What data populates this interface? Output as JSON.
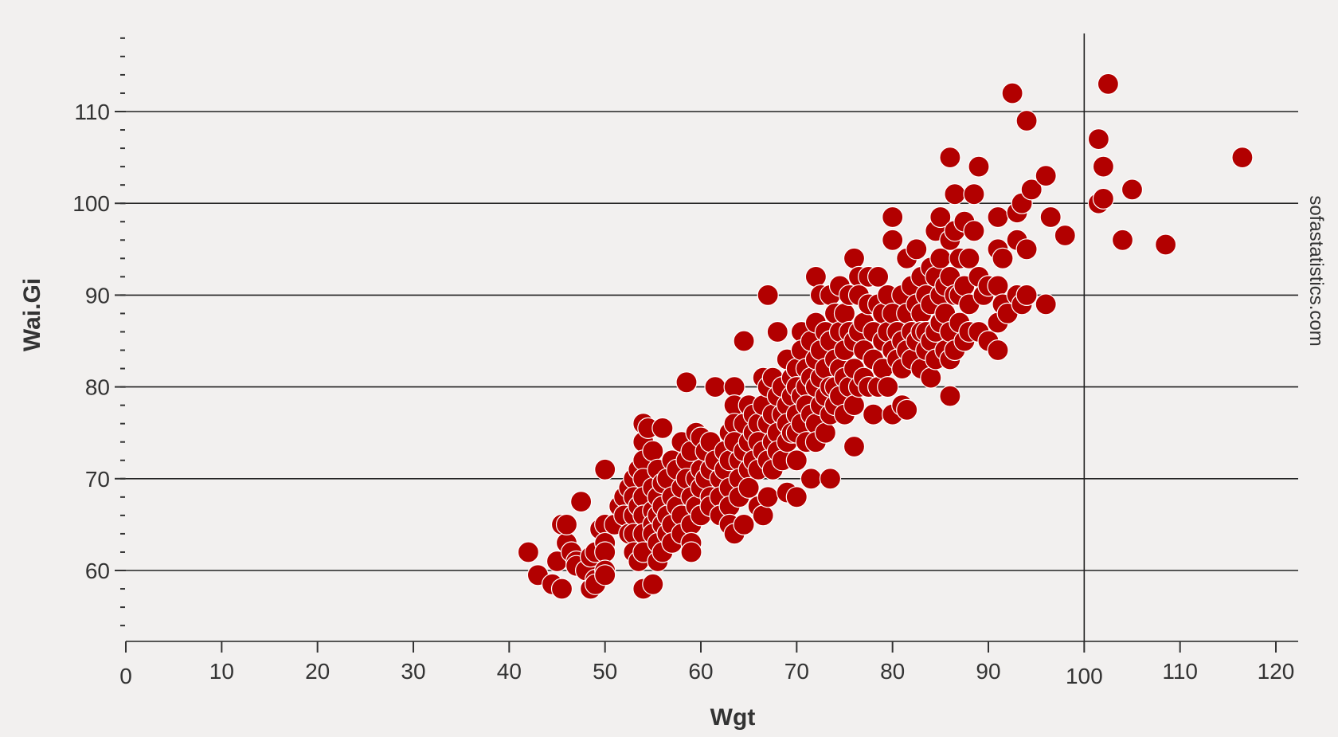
{
  "chart_data": {
    "type": "scatter",
    "xlabel": "Wgt",
    "ylabel": "Wai.Gi",
    "watermark": "sofastatistics.com",
    "xlim": [
      0,
      123
    ],
    "ylim": [
      52,
      118
    ],
    "x_ticks": [
      0,
      10,
      20,
      30,
      40,
      50,
      60,
      70,
      80,
      90,
      100,
      110,
      120
    ],
    "y_ticks": [
      60,
      70,
      80,
      90,
      100,
      110
    ],
    "y_minor_step": 2,
    "ref_line_x": 100,
    "grid_y": true,
    "marker_color": "#b20000",
    "marker_edge": "#ffffff",
    "points": [
      [
        42,
        62
      ],
      [
        43,
        59.5
      ],
      [
        44.5,
        58.5
      ],
      [
        45,
        61
      ],
      [
        45.5,
        58
      ],
      [
        45.5,
        65
      ],
      [
        46,
        63
      ],
      [
        46,
        65
      ],
      [
        46.5,
        62
      ],
      [
        47,
        61
      ],
      [
        47,
        60.5
      ],
      [
        47.5,
        67.5
      ],
      [
        48,
        60
      ],
      [
        48.5,
        58
      ],
      [
        48.5,
        61.5
      ],
      [
        49,
        59
      ],
      [
        49,
        58.5
      ],
      [
        49,
        62
      ],
      [
        49.5,
        64.5
      ],
      [
        50,
        71
      ],
      [
        50,
        65
      ],
      [
        50,
        63
      ],
      [
        50,
        62
      ],
      [
        50,
        60
      ],
      [
        50,
        59.5
      ],
      [
        51,
        65
      ],
      [
        51.5,
        67
      ],
      [
        52,
        68
      ],
      [
        52,
        66
      ],
      [
        52.5,
        69
      ],
      [
        52.5,
        64
      ],
      [
        53,
        70
      ],
      [
        53,
        68
      ],
      [
        53,
        66
      ],
      [
        53,
        64
      ],
      [
        53,
        62
      ],
      [
        53.5,
        71
      ],
      [
        53.5,
        67
      ],
      [
        53.5,
        61
      ],
      [
        54,
        76
      ],
      [
        54,
        74
      ],
      [
        54,
        72
      ],
      [
        54,
        70
      ],
      [
        54,
        68
      ],
      [
        54,
        66
      ],
      [
        54,
        64
      ],
      [
        54,
        62
      ],
      [
        54,
        58
      ],
      [
        54.5,
        75.5
      ],
      [
        55,
        73
      ],
      [
        55,
        69
      ],
      [
        55,
        66.5
      ],
      [
        55,
        65
      ],
      [
        55,
        64
      ],
      [
        55,
        58.5
      ],
      [
        55.5,
        71
      ],
      [
        55.5,
        68
      ],
      [
        55.5,
        66
      ],
      [
        55.5,
        63
      ],
      [
        55.5,
        61
      ],
      [
        56,
        75.5
      ],
      [
        56,
        69.5
      ],
      [
        56,
        67
      ],
      [
        56,
        65
      ],
      [
        56,
        62
      ],
      [
        56.5,
        70
      ],
      [
        56.5,
        66
      ],
      [
        56.5,
        64
      ],
      [
        57,
        72
      ],
      [
        57,
        68
      ],
      [
        57,
        65
      ],
      [
        57,
        63
      ],
      [
        57.5,
        71
      ],
      [
        57.5,
        67
      ],
      [
        58,
        74
      ],
      [
        58,
        69
      ],
      [
        58,
        66
      ],
      [
        58,
        64
      ],
      [
        58.5,
        80.5
      ],
      [
        58.5,
        72
      ],
      [
        58.5,
        70
      ],
      [
        59,
        73
      ],
      [
        59,
        68
      ],
      [
        59,
        65
      ],
      [
        59,
        63
      ],
      [
        59,
        62
      ],
      [
        59.5,
        75
      ],
      [
        59.5,
        70
      ],
      [
        59.5,
        67
      ],
      [
        60,
        74.5
      ],
      [
        60,
        71
      ],
      [
        60,
        69
      ],
      [
        60,
        66
      ],
      [
        60.5,
        73
      ],
      [
        60.5,
        70
      ],
      [
        61,
        74
      ],
      [
        61,
        71
      ],
      [
        61,
        68
      ],
      [
        61,
        67
      ],
      [
        61.5,
        80
      ],
      [
        61.5,
        72
      ],
      [
        62,
        70
      ],
      [
        62,
        68
      ],
      [
        62,
        66
      ],
      [
        62.5,
        73
      ],
      [
        62.5,
        71
      ],
      [
        63,
        75
      ],
      [
        63,
        72
      ],
      [
        63,
        69
      ],
      [
        63,
        67
      ],
      [
        63,
        65
      ],
      [
        63.5,
        80
      ],
      [
        63.5,
        78
      ],
      [
        63.5,
        76
      ],
      [
        63.5,
        74
      ],
      [
        63.5,
        64
      ],
      [
        64,
        72
      ],
      [
        64,
        70
      ],
      [
        64,
        68
      ],
      [
        64.5,
        85
      ],
      [
        64.5,
        76
      ],
      [
        64.5,
        73
      ],
      [
        64.5,
        65
      ],
      [
        65,
        78
      ],
      [
        65,
        74
      ],
      [
        65,
        71
      ],
      [
        65,
        69
      ],
      [
        65.5,
        77
      ],
      [
        65.5,
        75
      ],
      [
        65.5,
        72
      ],
      [
        66,
        76
      ],
      [
        66,
        74
      ],
      [
        66,
        71
      ],
      [
        66,
        67
      ],
      [
        66.5,
        81
      ],
      [
        66.5,
        78
      ],
      [
        66.5,
        73
      ],
      [
        66.5,
        66
      ],
      [
        67,
        90
      ],
      [
        67,
        80
      ],
      [
        67,
        76
      ],
      [
        67,
        72
      ],
      [
        67,
        68
      ],
      [
        67.5,
        81
      ],
      [
        67.5,
        77
      ],
      [
        67.5,
        74
      ],
      [
        67.5,
        71
      ],
      [
        68,
        86
      ],
      [
        68,
        79
      ],
      [
        68,
        75
      ],
      [
        68,
        73
      ],
      [
        68.5,
        80
      ],
      [
        68.5,
        77
      ],
      [
        68.5,
        72
      ],
      [
        69,
        83
      ],
      [
        69,
        78
      ],
      [
        69,
        76
      ],
      [
        69,
        74
      ],
      [
        69,
        68.5
      ],
      [
        69.5,
        81
      ],
      [
        69.5,
        79
      ],
      [
        69.5,
        75
      ],
      [
        70,
        82
      ],
      [
        70,
        80
      ],
      [
        70,
        77
      ],
      [
        70,
        75
      ],
      [
        70,
        72
      ],
      [
        70,
        68
      ],
      [
        70.5,
        86
      ],
      [
        70.5,
        84
      ],
      [
        70.5,
        79
      ],
      [
        70.5,
        76
      ],
      [
        71,
        82
      ],
      [
        71,
        80
      ],
      [
        71,
        78
      ],
      [
        71,
        74
      ],
      [
        71.5,
        85
      ],
      [
        71.5,
        81
      ],
      [
        71.5,
        77
      ],
      [
        71.5,
        70
      ],
      [
        72,
        92
      ],
      [
        72,
        87
      ],
      [
        72,
        83
      ],
      [
        72,
        80
      ],
      [
        72,
        76
      ],
      [
        72,
        74
      ],
      [
        72.5,
        90
      ],
      [
        72.5,
        84
      ],
      [
        72.5,
        81
      ],
      [
        72.5,
        78
      ],
      [
        73,
        86
      ],
      [
        73,
        82
      ],
      [
        73,
        79
      ],
      [
        73,
        75
      ],
      [
        73.5,
        90
      ],
      [
        73.5,
        85
      ],
      [
        73.5,
        80
      ],
      [
        73.5,
        77
      ],
      [
        73.5,
        70
      ],
      [
        74,
        88
      ],
      [
        74,
        83
      ],
      [
        74,
        80
      ],
      [
        74,
        78
      ],
      [
        74.5,
        91
      ],
      [
        74.5,
        86
      ],
      [
        74.5,
        82
      ],
      [
        74.5,
        79
      ],
      [
        75,
        88
      ],
      [
        75,
        84
      ],
      [
        75,
        81
      ],
      [
        75,
        77
      ],
      [
        75.5,
        90
      ],
      [
        75.5,
        86
      ],
      [
        75.5,
        80
      ],
      [
        76,
        94
      ],
      [
        76,
        85
      ],
      [
        76,
        82
      ],
      [
        76,
        78
      ],
      [
        76,
        73.5
      ],
      [
        76.5,
        92
      ],
      [
        76.5,
        90
      ],
      [
        76.5,
        86
      ],
      [
        76.5,
        80
      ],
      [
        77,
        87
      ],
      [
        77,
        84
      ],
      [
        77,
        81
      ],
      [
        77.5,
        92
      ],
      [
        77.5,
        89
      ],
      [
        77.5,
        80
      ],
      [
        78,
        86
      ],
      [
        78,
        83
      ],
      [
        78,
        77
      ],
      [
        78.5,
        92
      ],
      [
        78.5,
        89
      ],
      [
        78.5,
        80
      ],
      [
        79,
        88
      ],
      [
        79,
        85
      ],
      [
        79,
        82
      ],
      [
        79.5,
        90
      ],
      [
        79.5,
        86
      ],
      [
        79.5,
        80
      ],
      [
        80,
        98.5
      ],
      [
        80,
        96
      ],
      [
        80,
        88
      ],
      [
        80,
        84
      ],
      [
        80,
        77
      ],
      [
        80.5,
        86
      ],
      [
        80.5,
        83
      ],
      [
        81,
        90
      ],
      [
        81,
        85
      ],
      [
        81,
        82
      ],
      [
        81,
        78
      ],
      [
        81.5,
        94
      ],
      [
        81.5,
        88
      ],
      [
        81.5,
        84
      ],
      [
        81.5,
        77.5
      ],
      [
        82,
        91
      ],
      [
        82,
        86
      ],
      [
        82,
        83
      ],
      [
        82.5,
        95
      ],
      [
        82.5,
        89
      ],
      [
        82.5,
        85
      ],
      [
        83,
        92
      ],
      [
        83,
        88
      ],
      [
        83,
        86
      ],
      [
        83,
        82
      ],
      [
        83.5,
        90
      ],
      [
        83.5,
        86
      ],
      [
        83.5,
        84
      ],
      [
        84,
        93
      ],
      [
        84,
        89
      ],
      [
        84,
        85
      ],
      [
        84,
        81
      ],
      [
        84.5,
        97
      ],
      [
        84.5,
        92
      ],
      [
        84.5,
        86
      ],
      [
        84.5,
        83
      ],
      [
        85,
        98.5
      ],
      [
        85,
        94
      ],
      [
        85,
        90
      ],
      [
        85,
        87
      ],
      [
        85.5,
        91
      ],
      [
        85.5,
        88
      ],
      [
        85.5,
        84
      ],
      [
        86,
        105
      ],
      [
        86,
        96
      ],
      [
        86,
        92
      ],
      [
        86,
        86
      ],
      [
        86,
        83
      ],
      [
        86,
        79
      ],
      [
        86.5,
        101
      ],
      [
        86.5,
        97
      ],
      [
        86.5,
        90
      ],
      [
        86.5,
        84
      ],
      [
        87,
        94
      ],
      [
        87,
        90
      ],
      [
        87,
        87
      ],
      [
        87.5,
        98
      ],
      [
        87.5,
        91
      ],
      [
        87.5,
        85
      ],
      [
        88,
        94
      ],
      [
        88,
        89
      ],
      [
        88,
        86
      ],
      [
        88.5,
        101
      ],
      [
        88.5,
        97
      ],
      [
        89,
        104
      ],
      [
        89,
        92
      ],
      [
        89,
        86
      ],
      [
        89.5,
        90
      ],
      [
        90,
        91
      ],
      [
        90,
        85
      ],
      [
        91,
        98.5
      ],
      [
        91,
        95
      ],
      [
        91,
        91
      ],
      [
        91,
        87
      ],
      [
        91,
        84
      ],
      [
        91.5,
        94
      ],
      [
        91.5,
        89
      ],
      [
        92,
        88
      ],
      [
        92.5,
        112
      ],
      [
        93,
        99
      ],
      [
        93,
        96
      ],
      [
        93,
        90
      ],
      [
        93.5,
        100
      ],
      [
        93.5,
        89
      ],
      [
        94,
        109
      ],
      [
        94,
        95
      ],
      [
        94,
        90
      ],
      [
        94.5,
        101.5
      ],
      [
        96,
        103
      ],
      [
        96,
        89
      ],
      [
        96.5,
        98.5
      ],
      [
        98,
        96.5
      ],
      [
        101.5,
        107
      ],
      [
        101.5,
        100
      ],
      [
        102,
        104
      ],
      [
        102,
        100.5
      ],
      [
        102.5,
        113
      ],
      [
        104,
        96
      ],
      [
        105,
        101.5
      ],
      [
        108.5,
        95.5
      ],
      [
        116.5,
        105
      ]
    ]
  }
}
